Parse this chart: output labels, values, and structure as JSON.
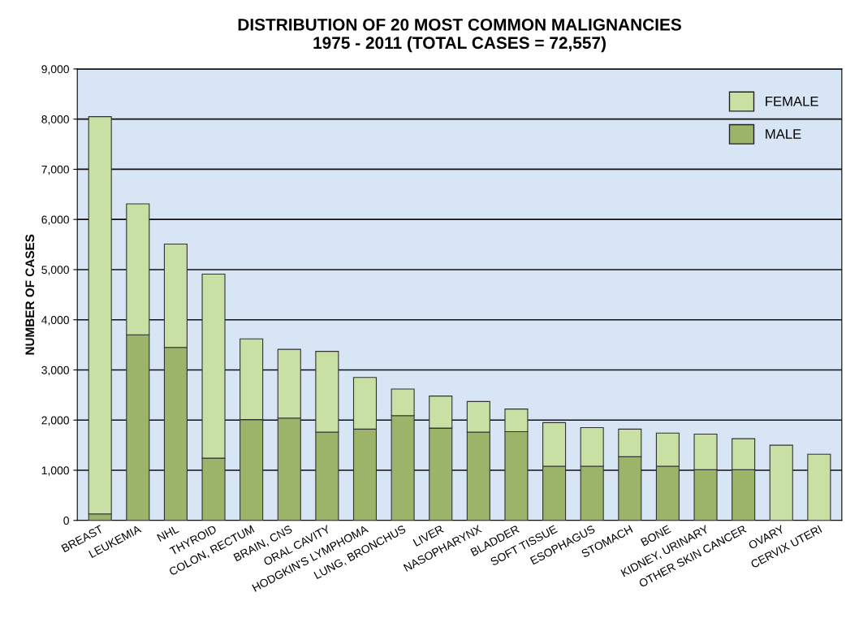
{
  "chart_data": {
    "type": "bar",
    "title": "DISTRIBUTION OF 20 MOST COMMON MALIGNANCIES\n1975 - 2011 (TOTAL CASES = 72,557)",
    "ylabel": "NUMBER OF CASES",
    "categories": [
      "BREAST",
      "LEUKEMIA",
      "NHL",
      "THYROID",
      "COLON, RECTUM",
      "BRAIN, CNS",
      "ORAL CAVITY",
      "HODGKIN'S LYMPHOMA",
      "LUNG, BRONCHUS",
      "LIVER",
      "NASOPHARYNX",
      "BLADDER",
      "SOFT TISSUE",
      "ESOPHAGUS",
      "STOMACH",
      "BONE",
      "KIDNEY, URINARY",
      "OTHER SKIN CANCER",
      "OVARY",
      "CERVIX UTERI"
    ],
    "stacked": true,
    "series": [
      {
        "name": "MALE",
        "color": "#9cb46a",
        "values": [
          130,
          3700,
          3450,
          1240,
          2010,
          2040,
          1760,
          1820,
          2090,
          1840,
          1760,
          1770,
          1080,
          1080,
          1270,
          1080,
          1010,
          1010,
          0,
          0
        ]
      },
      {
        "name": "FEMALE",
        "color": "#c8e0a4",
        "values": [
          7920,
          2610,
          2060,
          3670,
          1610,
          1370,
          1610,
          1030,
          530,
          640,
          610,
          450,
          870,
          770,
          550,
          660,
          710,
          620,
          1500,
          1320
        ]
      }
    ],
    "ylim": [
      0,
      9000
    ],
    "yticks": [
      {
        "value": 0,
        "label": "0"
      },
      {
        "value": 1000,
        "label": "1,000"
      },
      {
        "value": 2000,
        "label": "2,000"
      },
      {
        "value": 3000,
        "label": "3,000"
      },
      {
        "value": 4000,
        "label": "4,000"
      },
      {
        "value": 5000,
        "label": "5,000"
      },
      {
        "value": 6000,
        "label": "6,000"
      },
      {
        "value": 7000,
        "label": "7,000"
      },
      {
        "value": 8000,
        "label": "8,000"
      },
      {
        "value": 9000,
        "label": "9,000"
      }
    ],
    "grid": "y",
    "legend": "top right"
  }
}
